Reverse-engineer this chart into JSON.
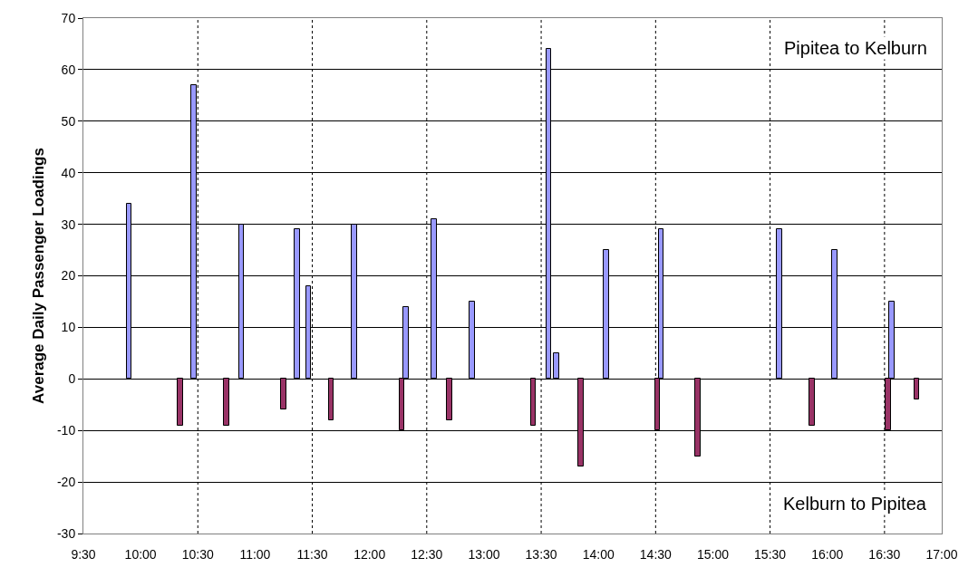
{
  "chart_data": {
    "type": "bar",
    "ylabel": "Average Daily Passenger Loadings",
    "series": [
      {
        "color": "#9999ff",
        "x": [
          9.9,
          10.467,
          10.883,
          11.367,
          11.467,
          11.867,
          12.317,
          12.567,
          12.9,
          13.567,
          13.633,
          14.067,
          14.55,
          15.583,
          16.067,
          16.567
        ],
        "values": [
          34,
          57,
          30,
          29,
          18,
          30,
          14,
          31,
          15,
          64,
          5,
          25,
          29,
          29,
          25,
          15
        ]
      },
      {
        "color": "#993366",
        "x": [
          10.35,
          10.75,
          11.25,
          11.667,
          12.283,
          12.7,
          13.433,
          13.85,
          14.517,
          14.867,
          15.867,
          16.533,
          16.783
        ],
        "values": [
          -9,
          -9,
          -6,
          -8,
          -10,
          -8,
          -9,
          -17,
          -10,
          -15,
          -9,
          -10,
          -4
        ]
      }
    ],
    "xlim": [
      9.5,
      17
    ],
    "xticks": [
      {
        "value": 9.5,
        "label": "9:30"
      },
      {
        "value": 10,
        "label": "10:00"
      },
      {
        "value": 10.5,
        "label": "10:30"
      },
      {
        "value": 11,
        "label": "11:00"
      },
      {
        "value": 11.5,
        "label": "11:30"
      },
      {
        "value": 12,
        "label": "12:00"
      },
      {
        "value": 12.5,
        "label": "12:30"
      },
      {
        "value": 13,
        "label": "13:00"
      },
      {
        "value": 13.5,
        "label": "13:30"
      },
      {
        "value": 14,
        "label": "14:00"
      },
      {
        "value": 14.5,
        "label": "14:30"
      },
      {
        "value": 15,
        "label": "15:00"
      },
      {
        "value": 15.5,
        "label": "15:30"
      },
      {
        "value": 16,
        "label": "16:00"
      },
      {
        "value": 16.5,
        "label": "16:30"
      },
      {
        "value": 17,
        "label": "17:00"
      }
    ],
    "ylim": [
      -30,
      70
    ],
    "yticks": [
      -30,
      -20,
      -10,
      0,
      10,
      20,
      30,
      40,
      50,
      60,
      70
    ],
    "grid": "y",
    "ref_lines": [
      {
        "axis": "x",
        "value": 10.5,
        "line_style": "dotted"
      },
      {
        "axis": "x",
        "value": 11.5,
        "line_style": "dotted"
      },
      {
        "axis": "x",
        "value": 12.5,
        "line_style": "dotted"
      },
      {
        "axis": "x",
        "value": 13.5,
        "line_style": "dotted"
      },
      {
        "axis": "x",
        "value": 14.5,
        "line_style": "dotted"
      },
      {
        "axis": "x",
        "value": 15.5,
        "line_style": "dotted"
      },
      {
        "axis": "x",
        "value": 16.5,
        "line_style": "dotted"
      }
    ],
    "annotations": [
      "Pipitea to Kelburn",
      "Kelburn to Pipitea"
    ]
  }
}
